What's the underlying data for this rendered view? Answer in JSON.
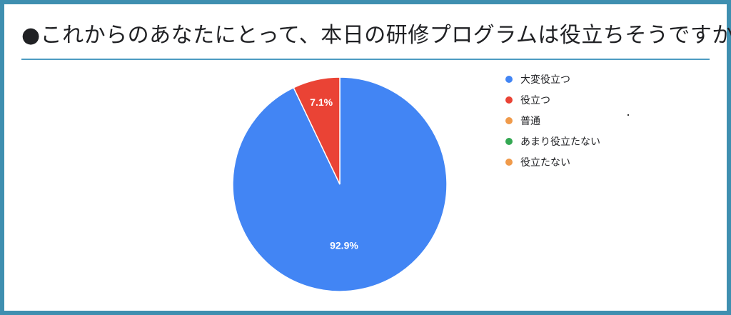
{
  "title": "●これからのあなたにとって、本日の研修プログラムは役立ちそうですか",
  "chart_data": {
    "type": "pie",
    "categories": [
      "大変役立つ",
      "役立つ",
      "普通",
      "あまり役立たない",
      "役立たない"
    ],
    "values": [
      92.9,
      7.1,
      0,
      0,
      0
    ],
    "data_labels": [
      "92.9%",
      "7.1%",
      "",
      "",
      ""
    ],
    "colors": [
      "#4285f4",
      "#ea4335",
      "#f09a4a",
      "#34a853",
      "#f09a4a"
    ],
    "legend_position": "right",
    "start_angle": "12 o'clock",
    "direction": "clockwise"
  }
}
